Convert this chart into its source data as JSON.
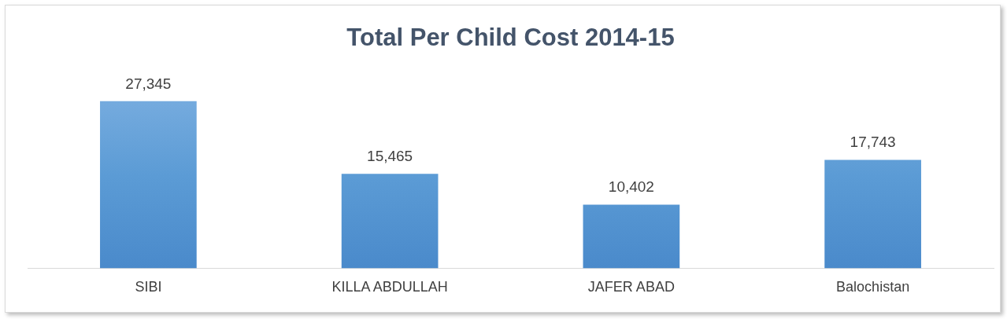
{
  "chart_data": {
    "type": "bar",
    "title": "Total Per Child Cost 2014-15",
    "categories": [
      "SIBI",
      "KILLA ABDULLAH",
      "JAFER ABAD",
      "Balochistan"
    ],
    "values": [
      27345,
      15465,
      10402,
      17743
    ],
    "color": "#5b9bd5",
    "value_labels": [
      "27,345",
      "15,465",
      "10,402",
      "17,743"
    ],
    "grid": false,
    "legend": false
  }
}
